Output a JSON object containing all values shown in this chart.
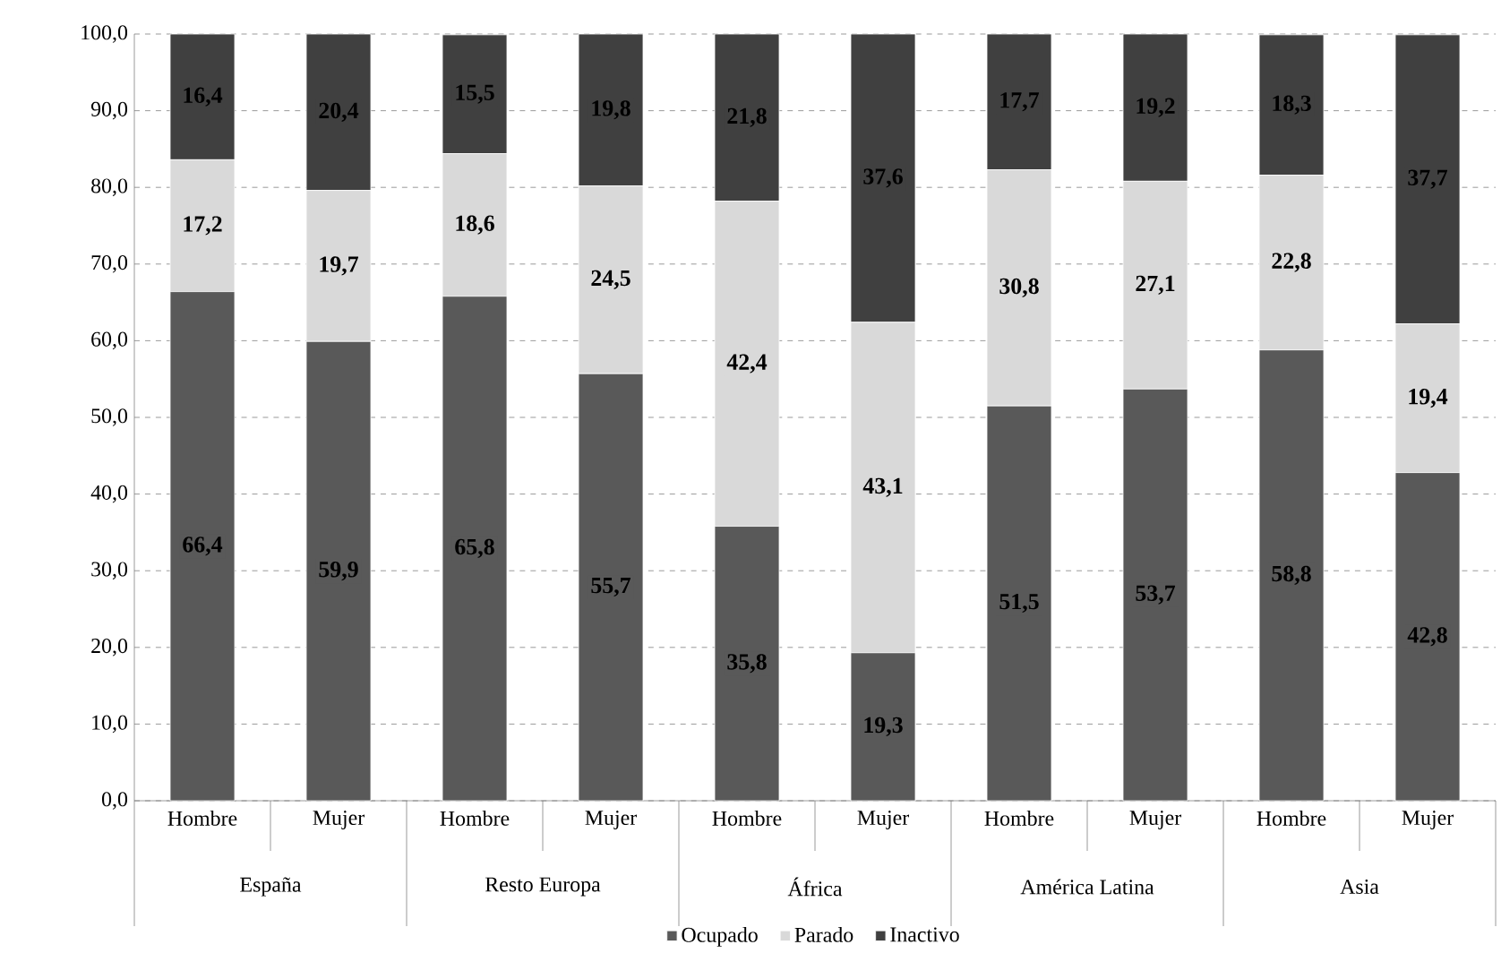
{
  "chart_data": {
    "type": "bar",
    "stacked": true,
    "categories": [
      "Hombre",
      "Mujer",
      "Hombre",
      "Mujer",
      "Hombre",
      "Mujer",
      "Hombre",
      "Mujer",
      "Hombre",
      "Mujer"
    ],
    "annotations": [
      "España",
      "Resto Europa",
      "África",
      "América Latina",
      "Asia"
    ],
    "series": [
      {
        "name": "Ocupado",
        "color": "#595959",
        "values": [
          66.4,
          59.9,
          65.8,
          55.7,
          35.8,
          19.3,
          51.5,
          53.7,
          58.8,
          42.8
        ],
        "value_labels": [
          "66,4",
          "59,9",
          "65,8",
          "55,7",
          "35,8",
          "19,3",
          "51,5",
          "53,7",
          "58,8",
          "42,8"
        ]
      },
      {
        "name": "Parado",
        "color": "#d9d9d9",
        "values": [
          17.2,
          19.7,
          18.6,
          24.5,
          42.4,
          43.1,
          30.8,
          27.1,
          22.8,
          19.4
        ],
        "value_labels": [
          "17,2",
          "19,7",
          "18,6",
          "24,5",
          "42,4",
          "43,1",
          "30,8",
          "27,1",
          "22,8",
          "19,4"
        ]
      },
      {
        "name": "Inactivo",
        "color": "#404040",
        "values": [
          16.4,
          20.4,
          15.5,
          19.8,
          21.8,
          37.6,
          17.7,
          19.2,
          18.3,
          37.7
        ],
        "value_labels": [
          "16,4",
          "20,4",
          "15,5",
          "19,8",
          "21,8",
          "37,6",
          "17,7",
          "19,2",
          "18,3",
          "37,7"
        ]
      }
    ],
    "ylim": [
      0,
      100
    ],
    "yticks": [
      {
        "value": 0,
        "label": "0,0"
      },
      {
        "value": 10,
        "label": "10,0"
      },
      {
        "value": 20,
        "label": "20,0"
      },
      {
        "value": 30,
        "label": "30,0"
      },
      {
        "value": 40,
        "label": "40,0"
      },
      {
        "value": 50,
        "label": "50,0"
      },
      {
        "value": 60,
        "label": "60,0"
      },
      {
        "value": 70,
        "label": "70,0"
      },
      {
        "value": 80,
        "label": "80,0"
      },
      {
        "value": 90,
        "label": "90,0"
      },
      {
        "value": 100,
        "label": "100,0"
      }
    ],
    "grid": "y",
    "legend": "bottom"
  }
}
